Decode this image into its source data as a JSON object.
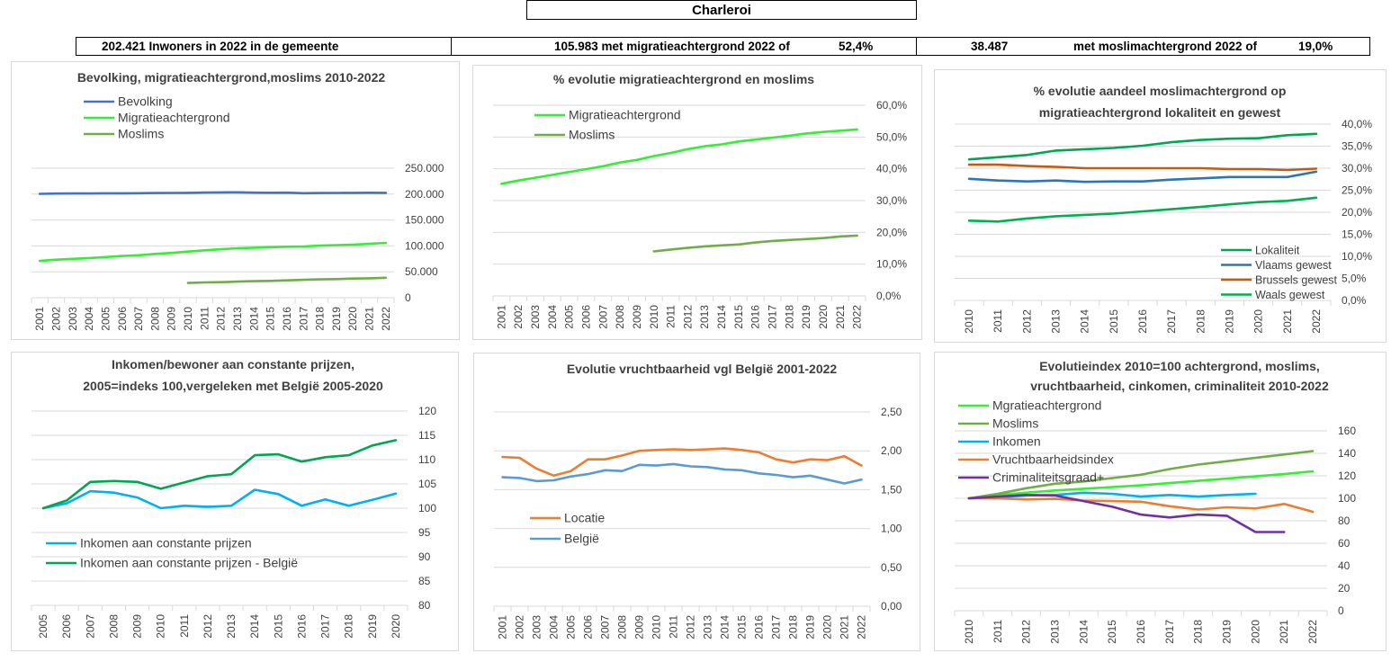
{
  "header": {
    "title": "Charleroi",
    "stat1": "202.421 Inwoners in 2022 in de gemeente",
    "stat2_value": "105.983 met migratieachtergrond 2022 of",
    "stat2_pct": "52,4%",
    "stat3_value": "38.487",
    "stat3_label": "met moslimachtergrond 2022 of",
    "stat3_pct": "19,0%"
  },
  "colors": {
    "bevolking": "#4472c4",
    "migratie": "#33ee33",
    "moslims": "#70ad47",
    "lokaliteit": "#00a651",
    "vlaams": "#2e75b6",
    "brussels": "#c55a11",
    "waals": "#00b050",
    "inkomen": "#00b0f0",
    "inkomen_belgie": "#00a651",
    "locatie": "#ed7d31",
    "belgie": "#5b9bd5",
    "vruchtbaarheid": "#ed7d31",
    "criminaliteit": "#7030a0",
    "grid": "#d9d9d9",
    "axis_text": "#404040"
  },
  "chart_data": [
    {
      "id": "c1",
      "type": "line",
      "title": [
        "Bevolking, migratieachtergrond,moslims  2010-2022"
      ],
      "x": [
        "2001",
        "2002",
        "2003",
        "2004",
        "2005",
        "2006",
        "2007",
        "2008",
        "2009",
        "2010",
        "2011",
        "2012",
        "2013",
        "2014",
        "2015",
        "2016",
        "2017",
        "2018",
        "2019",
        "2020",
        "2021",
        "2022"
      ],
      "ylim": [
        0,
        250000
      ],
      "yticks": [
        "0",
        "50.000",
        "100.000",
        "150.000",
        "200.000",
        "250.000"
      ],
      "yaxis": "right",
      "legend_placement": "top-left",
      "series": [
        {
          "name": "Bevolking",
          "color": "bevolking",
          "values": [
            200500,
            201000,
            201200,
            201300,
            201500,
            201600,
            201700,
            202000,
            202200,
            202500,
            202900,
            203300,
            203500,
            202800,
            202600,
            202700,
            201800,
            202000,
            202300,
            202500,
            202600,
            202421
          ]
        },
        {
          "name": "Migratieachtergrond",
          "color": "migratie",
          "values": [
            71000,
            73500,
            75000,
            76500,
            78500,
            80500,
            82000,
            84500,
            86500,
            89000,
            91500,
            93500,
            95500,
            96500,
            97500,
            98500,
            99000,
            100500,
            101500,
            102500,
            104000,
            105983
          ]
        },
        {
          "name": "Moslims",
          "color": "moslims",
          "values": [
            null,
            null,
            null,
            null,
            null,
            null,
            null,
            null,
            null,
            28500,
            29500,
            30000,
            31000,
            32000,
            32500,
            33500,
            34500,
            35500,
            36000,
            37000,
            37500,
            38487
          ]
        }
      ]
    },
    {
      "id": "c2",
      "type": "line",
      "title": [
        "% evolutie migratieachtergrond  en moslims"
      ],
      "x": [
        "2001",
        "2002",
        "2003",
        "2004",
        "2005",
        "2006",
        "2007",
        "2008",
        "2009",
        "2010",
        "2011",
        "2012",
        "2013",
        "2014",
        "2015",
        "2016",
        "2017",
        "2018",
        "2019",
        "2020",
        "2021",
        "2022"
      ],
      "ylim": [
        0,
        60
      ],
      "yticks": [
        "0,0%",
        "10,0%",
        "20,0%",
        "30,0%",
        "40,0%",
        "50,0%",
        "60,0%"
      ],
      "yaxis": "right",
      "legend_placement": "top-left",
      "series": [
        {
          "name": "Migratieachtergrond",
          "color": "migratie",
          "values": [
            35.3,
            36.3,
            37.2,
            38.1,
            39.0,
            39.9,
            40.8,
            42.0,
            42.8,
            44.0,
            45.0,
            46.2,
            47.1,
            47.7,
            48.6,
            49.2,
            49.8,
            50.4,
            51.1,
            51.6,
            52.0,
            52.4
          ]
        },
        {
          "name": "Moslims",
          "color": "moslims",
          "values": [
            null,
            null,
            null,
            null,
            null,
            null,
            null,
            null,
            null,
            14.0,
            14.6,
            15.1,
            15.6,
            15.9,
            16.2,
            16.8,
            17.3,
            17.6,
            17.9,
            18.2,
            18.7,
            19.0
          ]
        }
      ]
    },
    {
      "id": "c3",
      "type": "line",
      "title": [
        "% evolutie aandeel moslimachtergrond op",
        "migratieachtergrond lokaliteit  en gewest"
      ],
      "x": [
        "2010",
        "2011",
        "2012",
        "2013",
        "2014",
        "2015",
        "2016",
        "2017",
        "2018",
        "2019",
        "2020",
        "2021",
        "2022"
      ],
      "ylim": [
        0,
        40
      ],
      "yticks": [
        "0,0%",
        "5,0%",
        "10,0%",
        "15,0%",
        "20,0%",
        "25,0%",
        "30,0%",
        "35,0%",
        "40,0%"
      ],
      "yaxis": "right",
      "legend_placement": "bottom-right",
      "series": [
        {
          "name": "Lokaliteit",
          "color": "lokaliteit",
          "values": [
            32.0,
            32.5,
            33.0,
            34.0,
            34.3,
            34.6,
            35.1,
            35.9,
            36.4,
            36.7,
            36.8,
            37.5,
            37.8
          ]
        },
        {
          "name": "Vlaams gewest",
          "color": "vlaams",
          "values": [
            27.6,
            27.2,
            27.0,
            27.2,
            26.9,
            27.0,
            27.0,
            27.4,
            27.7,
            28.0,
            28.0,
            28.0,
            29.2
          ]
        },
        {
          "name": "Brussels gewest",
          "color": "brussels",
          "values": [
            30.8,
            30.8,
            30.5,
            30.3,
            30.0,
            30.0,
            30.0,
            30.0,
            30.0,
            29.8,
            29.8,
            29.6,
            29.9
          ]
        },
        {
          "name": "Waals gewest",
          "color": "waals",
          "values": [
            18.1,
            17.9,
            18.6,
            19.1,
            19.4,
            19.7,
            20.2,
            20.7,
            21.2,
            21.8,
            22.3,
            22.6,
            23.3
          ]
        }
      ]
    },
    {
      "id": "c4",
      "type": "line",
      "title": [
        "Inkomen/bewoner aan constante prijzen,",
        "2005=indeks 100,vergeleken  met België 2005-2020"
      ],
      "x": [
        "2005",
        "2006",
        "2007",
        "2008",
        "2009",
        "2010",
        "2011",
        "2012",
        "2013",
        "2014",
        "2015",
        "2016",
        "2017",
        "2018",
        "2019",
        "2020"
      ],
      "ylim": [
        80,
        120
      ],
      "yticks": [
        "80",
        "85",
        "90",
        "95",
        "100",
        "105",
        "110",
        "115",
        "120"
      ],
      "yaxis": "right",
      "legend_placement": "bottom-left",
      "series": [
        {
          "name": "Inkomen aan constante prijzen",
          "color": "inkomen",
          "values": [
            100,
            101,
            103.5,
            103.2,
            102.2,
            100,
            100.5,
            100.3,
            100.5,
            103.8,
            102.9,
            100.5,
            101.8,
            100.5,
            101.7,
            103
          ]
        },
        {
          "name": "Inkomen aan constante prijzen - België",
          "color": "inkomen_belgie",
          "values": [
            100,
            101.6,
            105.4,
            105.6,
            105.4,
            104,
            105.3,
            106.6,
            107,
            110.9,
            111.1,
            109.6,
            110.5,
            110.9,
            112.9,
            114
          ]
        }
      ]
    },
    {
      "id": "c5",
      "type": "line",
      "title": [
        "Evolutie vruchtbaarheid vgl België 2001-2022"
      ],
      "x": [
        "2001",
        "2002",
        "2003",
        "2004",
        "2005",
        "2006",
        "2007",
        "2008",
        "2009",
        "2010",
        "2011",
        "2012",
        "2013",
        "2014",
        "2015",
        "2016",
        "2017",
        "2018",
        "2019",
        "2020",
        "2021",
        "2022"
      ],
      "ylim": [
        0,
        2.5
      ],
      "yticks": [
        "0,00",
        "0,50",
        "1,00",
        "1,50",
        "2,00",
        "2,50"
      ],
      "yaxis": "right",
      "legend_placement": "center-left",
      "series": [
        {
          "name": "Locatie",
          "color": "locatie",
          "values": [
            1.92,
            1.91,
            1.77,
            1.68,
            1.74,
            1.89,
            1.89,
            1.94,
            2.0,
            2.01,
            2.02,
            2.01,
            2.02,
            2.03,
            2.01,
            1.98,
            1.89,
            1.85,
            1.89,
            1.88,
            1.93,
            1.81
          ]
        },
        {
          "name": "België",
          "color": "belgie",
          "values": [
            1.66,
            1.65,
            1.61,
            1.62,
            1.67,
            1.7,
            1.75,
            1.74,
            1.82,
            1.81,
            1.83,
            1.8,
            1.79,
            1.76,
            1.75,
            1.71,
            1.69,
            1.66,
            1.68,
            1.63,
            1.58,
            1.63
          ]
        }
      ]
    },
    {
      "id": "c6",
      "type": "line",
      "title": [
        "Evolutieindex 2010=100 achtergrond, moslims,",
        "vruchtbaarheid, cinkomen, criminaliteit  2010-2022"
      ],
      "x": [
        "2010",
        "2011",
        "2012",
        "2013",
        "2014",
        "2015",
        "2016",
        "2017",
        "2018",
        "2019",
        "2020",
        "2021",
        "2022"
      ],
      "ylim": [
        0,
        160
      ],
      "yticks": [
        "0",
        "20",
        "40",
        "60",
        "80",
        "100",
        "120",
        "140",
        "160"
      ],
      "yaxis": "right",
      "legend_placement": "top-left",
      "series": [
        {
          "name": "Mgratieachtergrond",
          "color": "migratie",
          "values": [
            100,
            103,
            105,
            107,
            108.5,
            110,
            111.5,
            113.5,
            115.5,
            117.5,
            119.5,
            121.5,
            124
          ]
        },
        {
          "name": "Moslims",
          "color": "moslims",
          "values": [
            100,
            104,
            109,
            113,
            115,
            118,
            121,
            126,
            130,
            133,
            136,
            139,
            142
          ]
        },
        {
          "name": "Inkomen",
          "color": "inkomen",
          "values": [
            100,
            101,
            102.5,
            103,
            105,
            104,
            101.5,
            103,
            101.5,
            103,
            104,
            null,
            null
          ]
        },
        {
          "name": "Vruchtbaarheidsindex",
          "color": "vruchtbaarheid",
          "values": [
            100,
            100,
            99,
            99.5,
            98,
            97.5,
            97,
            93,
            90,
            92,
            91,
            95,
            88
          ]
        },
        {
          "name": "Criminaliteitsgraad+",
          "color": "criminaliteit",
          "values": [
            100,
            101.5,
            103,
            102.5,
            97.5,
            92.5,
            85.5,
            83,
            85.5,
            84.5,
            70,
            70,
            null
          ]
        }
      ]
    }
  ]
}
